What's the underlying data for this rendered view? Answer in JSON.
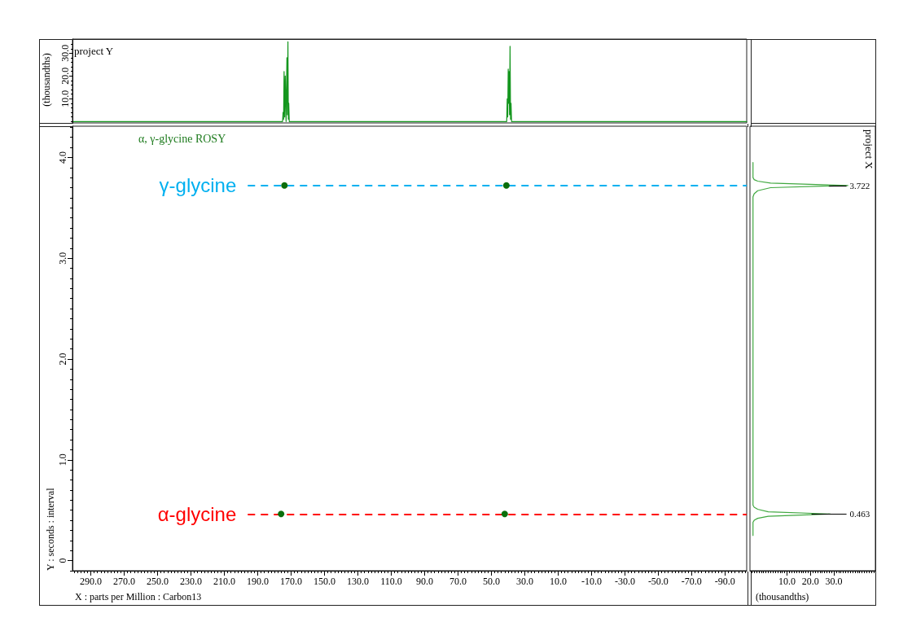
{
  "chart_data": [
    {
      "type": "line",
      "title": "project Y",
      "ylabel": "(thousandths)",
      "x": [
        301,
        175.1,
        174.8,
        174.5,
        174.2,
        173.85,
        173.5,
        173.0,
        172.8,
        172.5,
        172.2,
        171.9,
        171.65,
        171.4,
        171.1,
        40.8,
        40.5,
        40.2,
        39.9,
        39.65,
        39.4,
        39.1,
        38.8,
        38.5,
        38.2,
        37.9,
        -103
      ],
      "values": [
        0,
        0,
        4,
        1,
        22,
        2,
        20,
        0,
        0,
        28,
        3,
        35,
        1,
        8,
        0,
        0,
        10,
        2,
        23,
        8,
        22,
        3,
        33,
        1,
        8,
        0,
        0
      ],
      "color": "#14961e",
      "marker": "none",
      "xlim": [
        301,
        -103
      ],
      "ylim": [
        -0.6,
        36.2
      ],
      "yticks": [
        {
          "value": 10,
          "label": "10.0"
        },
        {
          "value": 20,
          "label": "20.0"
        },
        {
          "value": 30,
          "label": "30.0"
        }
      ],
      "tick_labels": "y"
    },
    {
      "type": "scatter",
      "title": "α, γ-glycine ROSY",
      "xlabel": "X : parts per Million : Carbon13",
      "ylabel": "Y : seconds : interval",
      "x": [
        174,
        41,
        176,
        42
      ],
      "values": [
        3.722,
        3.722,
        0.463,
        0.463
      ],
      "color": "#0b6e0b",
      "marker": "circle",
      "xlim": [
        301,
        -103
      ],
      "ylim": [
        -0.1,
        4.31
      ],
      "xticks": [
        {
          "value": 290,
          "label": "290.0"
        },
        {
          "value": 270,
          "label": "270.0"
        },
        {
          "value": 250,
          "label": "250.0"
        },
        {
          "value": 230,
          "label": "230.0"
        },
        {
          "value": 210,
          "label": "210.0"
        },
        {
          "value": 190,
          "label": "190.0"
        },
        {
          "value": 170,
          "label": "170.0"
        },
        {
          "value": 150,
          "label": "150.0"
        },
        {
          "value": 130,
          "label": "130.0"
        },
        {
          "value": 110,
          "label": "110.0"
        },
        {
          "value": 90,
          "label": "90.0"
        },
        {
          "value": 70,
          "label": "70.0"
        },
        {
          "value": 50,
          "label": "50.0"
        },
        {
          "value": 30,
          "label": "30.0"
        },
        {
          "value": 10,
          "label": "10.0"
        },
        {
          "value": -10,
          "label": "-10.0"
        },
        {
          "value": -30,
          "label": "-30.0"
        },
        {
          "value": -50,
          "label": "-50.0"
        },
        {
          "value": -70,
          "label": "-70.0"
        },
        {
          "value": -90,
          "label": "-90.0"
        }
      ],
      "yticks": [
        0,
        {
          "value": 1,
          "label": "1.0"
        },
        {
          "value": 2,
          "label": "2.0"
        },
        {
          "value": 3,
          "label": "3.0"
        },
        {
          "value": 4,
          "label": "4.0"
        }
      ],
      "ref_lines": [
        {
          "axis": "y",
          "value": 3.722,
          "label": "γ-glycine",
          "color": "#00b0f0",
          "line_style": "dashed"
        },
        {
          "axis": "y",
          "value": 0.463,
          "label": "α-glycine",
          "color": "#ff0000",
          "line_style": "dashed"
        }
      ]
    },
    {
      "type": "line",
      "title": "project X",
      "xlabel": "(thousandths)",
      "x": [
        -4.5,
        -4.5,
        -4,
        -2.5,
        2,
        28.5,
        2,
        -2.5,
        -4,
        -4.5,
        -4.5,
        -4,
        -2.5,
        3,
        36,
        3,
        -2.5,
        -4,
        -4.5,
        -4.5
      ],
      "values": [
        0.25,
        0.38,
        0.4,
        0.42,
        0.44,
        0.463,
        0.485,
        0.51,
        0.53,
        0.55,
        3.61,
        3.64,
        3.67,
        3.7,
        3.722,
        3.745,
        3.765,
        3.78,
        3.8,
        3.95
      ],
      "color": "#40a840",
      "marker": "none",
      "xlim": [
        -5.8,
        47.7
      ],
      "ylim": [
        -0.1,
        4.31
      ],
      "xticks": [
        {
          "value": 10,
          "label": "10.0"
        },
        {
          "value": 20,
          "label": "20.0"
        },
        {
          "value": 30,
          "label": "30.0"
        }
      ],
      "tick_labels": "x",
      "annotations": [
        {
          "text": "3.722",
          "x": 36,
          "y": 3.722
        },
        {
          "text": "0.463",
          "x": 28.5,
          "y": 0.463
        }
      ]
    }
  ]
}
